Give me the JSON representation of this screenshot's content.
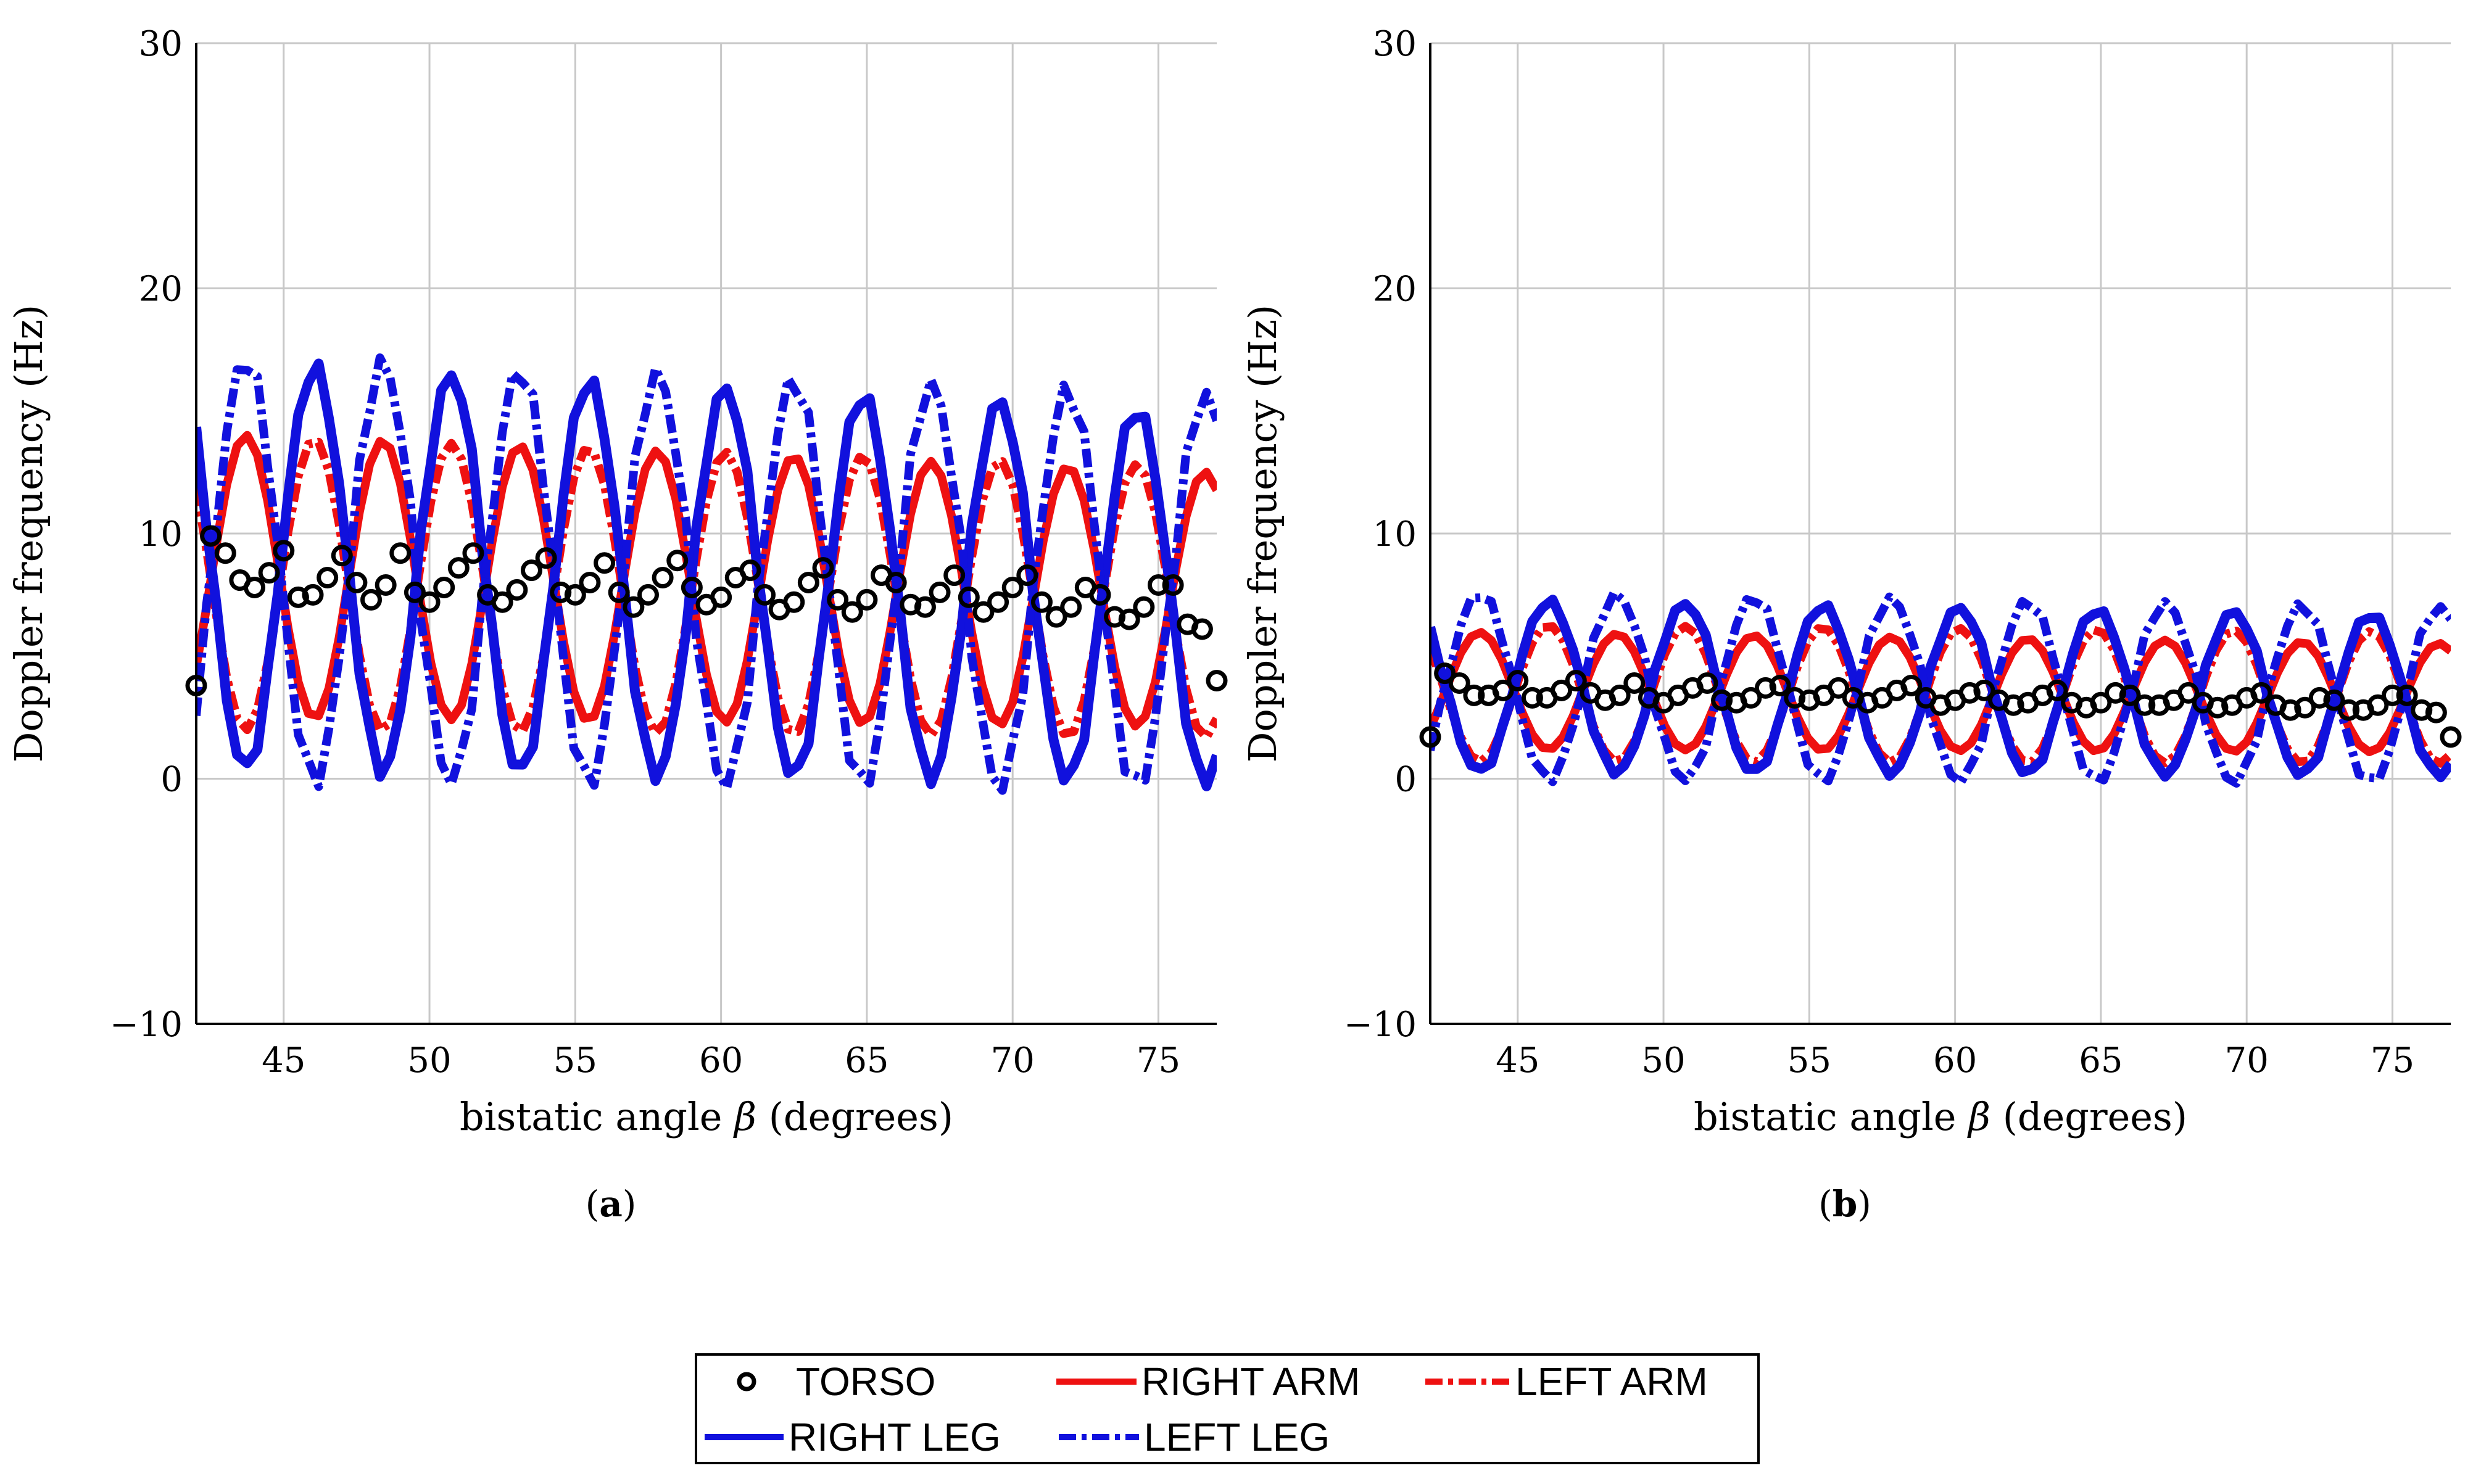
{
  "chart_data": [
    {
      "type": "line",
      "panel_label_prefix": "(",
      "panel_label": "a",
      "panel_label_suffix": ")",
      "xlabel_main": "bistatic angle ",
      "xlabel_symbol": "β",
      "xlabel_suffix": " (degrees)",
      "ylabel": "Doppler frequency (Hz)",
      "xlim": [
        42,
        77
      ],
      "ylim": [
        -10,
        30
      ],
      "xticks": [
        45,
        50,
        55,
        60,
        65,
        70,
        75
      ],
      "yticks": [
        -10,
        0,
        10,
        20,
        30
      ],
      "ytick_labels": [
        "−10",
        "0",
        "10",
        "20",
        "30"
      ],
      "grid": true,
      "series": [
        {
          "key": "torso",
          "style": "marker",
          "color": "#000000",
          "x": [
            42,
            42.5,
            43,
            43.5,
            44,
            44.5,
            45,
            45.5,
            46,
            46.5,
            47,
            47.5,
            48,
            48.5,
            49,
            49.5,
            50,
            50.5,
            51,
            51.5,
            52,
            52.5,
            53,
            53.5,
            54,
            54.5,
            55,
            55.5,
            56,
            56.5,
            57,
            57.5,
            58,
            58.5,
            59,
            59.5,
            60,
            60.5,
            61,
            61.5,
            62,
            62.5,
            63,
            63.5,
            64,
            64.5,
            65,
            65.5,
            66,
            66.5,
            67,
            67.5,
            68,
            68.5,
            69,
            69.5,
            70,
            70.5,
            71,
            71.5,
            72,
            72.5,
            73,
            73.5,
            74,
            74.5,
            75,
            75.5,
            76,
            76.5,
            77
          ],
          "y": [
            3.8,
            9.9,
            9.2,
            8.1,
            7.8,
            8.4,
            9.3,
            7.4,
            7.5,
            8.2,
            9.1,
            8.0,
            7.3,
            7.9,
            9.2,
            7.6,
            7.2,
            7.8,
            8.6,
            9.2,
            7.5,
            7.2,
            7.7,
            8.5,
            9.0,
            7.6,
            7.5,
            8.0,
            8.8,
            7.6,
            7.0,
            7.5,
            8.2,
            8.9,
            7.8,
            7.1,
            7.4,
            8.2,
            8.5,
            7.5,
            6.9,
            7.2,
            8.0,
            8.6,
            7.3,
            6.8,
            7.3,
            8.3,
            8.0,
            7.1,
            7.0,
            7.6,
            8.3,
            7.4,
            6.8,
            7.2,
            7.8,
            8.3,
            7.2,
            6.6,
            7.0,
            7.8,
            7.5,
            6.6,
            6.5,
            7.0,
            7.9,
            7.9,
            6.3,
            6.1,
            4.0
          ]
        },
        {
          "key": "right_arm",
          "style": "solid",
          "color": "#ee1111",
          "width": 14,
          "base": 8.3,
          "amp": 5.8,
          "decay": 1.0,
          "period": 4.7,
          "phase": 0.0,
          "jitter": 0.0
        },
        {
          "key": "left_arm",
          "style": "dashdot",
          "color": "#ee1111",
          "width": 14,
          "base": 8.0,
          "amp": 6.0,
          "decay": 0.8,
          "period": 4.7,
          "phase": 3.1416,
          "jitter": 0.0
        },
        {
          "key": "right_leg",
          "style": "solid",
          "color": "#1111dd",
          "width": 16,
          "base": 8.7,
          "amp": 8.3,
          "decay": 1.3,
          "period": 4.7,
          "phase": 3.1416,
          "jitter": 0.35
        },
        {
          "key": "left_leg",
          "style": "dashdot",
          "color": "#1111dd",
          "width": 14,
          "base": 8.6,
          "amp": 8.6,
          "decay": 1.0,
          "period": 4.7,
          "phase": 0.0,
          "jitter": 0.5
        }
      ]
    },
    {
      "type": "line",
      "panel_label_prefix": "(",
      "panel_label": "b",
      "panel_label_suffix": ")",
      "xlabel_main": "bistatic angle ",
      "xlabel_symbol": "β",
      "xlabel_suffix": " (degrees)",
      "ylabel": "Doppler frequency (Hz)",
      "xlim": [
        42,
        77
      ],
      "ylim": [
        -10,
        30
      ],
      "xticks": [
        45,
        50,
        55,
        60,
        65,
        70,
        75
      ],
      "yticks": [
        -10,
        0,
        10,
        20,
        30
      ],
      "ytick_labels": [
        "−10",
        "0",
        "10",
        "20",
        "30"
      ],
      "grid": true,
      "series": [
        {
          "key": "torso",
          "style": "marker",
          "color": "#000000",
          "x": [
            42,
            42.5,
            43,
            43.5,
            44,
            44.5,
            45,
            45.5,
            46,
            46.5,
            47,
            47.5,
            48,
            48.5,
            49,
            49.5,
            50,
            50.5,
            51,
            51.5,
            52,
            52.5,
            53,
            53.5,
            54,
            54.5,
            55,
            55.5,
            56,
            56.5,
            57,
            57.5,
            58,
            58.5,
            59,
            59.5,
            60,
            60.5,
            61,
            61.5,
            62,
            62.5,
            63,
            63.5,
            64,
            64.5,
            65,
            65.5,
            66,
            66.5,
            67,
            67.5,
            68,
            68.5,
            69,
            69.5,
            70,
            70.5,
            71,
            71.5,
            72,
            72.5,
            73,
            73.5,
            74,
            74.5,
            75,
            75.5,
            76,
            76.5,
            77
          ],
          "y": [
            1.7,
            4.3,
            3.9,
            3.4,
            3.4,
            3.6,
            4.0,
            3.3,
            3.3,
            3.6,
            4.0,
            3.5,
            3.2,
            3.4,
            3.9,
            3.3,
            3.1,
            3.4,
            3.7,
            3.9,
            3.2,
            3.1,
            3.3,
            3.7,
            3.8,
            3.3,
            3.2,
            3.4,
            3.7,
            3.3,
            3.1,
            3.3,
            3.6,
            3.8,
            3.3,
            3.0,
            3.2,
            3.5,
            3.6,
            3.2,
            3.0,
            3.1,
            3.4,
            3.6,
            3.1,
            2.9,
            3.1,
            3.5,
            3.4,
            3.0,
            3.0,
            3.2,
            3.5,
            3.1,
            2.9,
            3.0,
            3.3,
            3.5,
            3.0,
            2.8,
            2.9,
            3.3,
            3.2,
            2.8,
            2.8,
            3.0,
            3.4,
            3.4,
            2.8,
            2.7,
            1.7
          ]
        },
        {
          "key": "right_arm",
          "style": "solid",
          "color": "#ee1111",
          "width": 14,
          "base": 3.6,
          "amp": 2.4,
          "decay": 0.3,
          "period": 4.7,
          "phase": 0.0,
          "jitter": 0.0
        },
        {
          "key": "left_arm",
          "style": "dashdot",
          "color": "#ee1111",
          "width": 14,
          "base": 3.5,
          "amp": 2.8,
          "decay": 0.2,
          "period": 4.7,
          "phase": 3.1416,
          "jitter": 0.0
        },
        {
          "key": "right_leg",
          "style": "solid",
          "color": "#1111dd",
          "width": 16,
          "base": 3.8,
          "amp": 3.5,
          "decay": 0.4,
          "period": 4.7,
          "phase": 3.1416,
          "jitter": 0.15
        },
        {
          "key": "left_leg",
          "style": "dashdot",
          "color": "#1111dd",
          "width": 14,
          "base": 3.8,
          "amp": 3.8,
          "decay": 0.4,
          "period": 4.7,
          "phase": 0.0,
          "jitter": 0.2
        }
      ]
    }
  ],
  "legend": {
    "position": "bottom-center",
    "items": [
      {
        "key": "torso",
        "label": "TORSO",
        "style": "marker",
        "color": "#000000"
      },
      {
        "key": "right_arm",
        "label": "RIGHT ARM",
        "style": "solid",
        "color": "#ee1111"
      },
      {
        "key": "left_arm",
        "label": "LEFT ARM",
        "style": "dashdot",
        "color": "#ee1111"
      },
      {
        "key": "right_leg",
        "label": "RIGHT LEG",
        "style": "solid",
        "color": "#1111dd"
      },
      {
        "key": "left_leg",
        "label": "LEFT LEG",
        "style": "dashdot",
        "color": "#1111dd"
      }
    ]
  }
}
